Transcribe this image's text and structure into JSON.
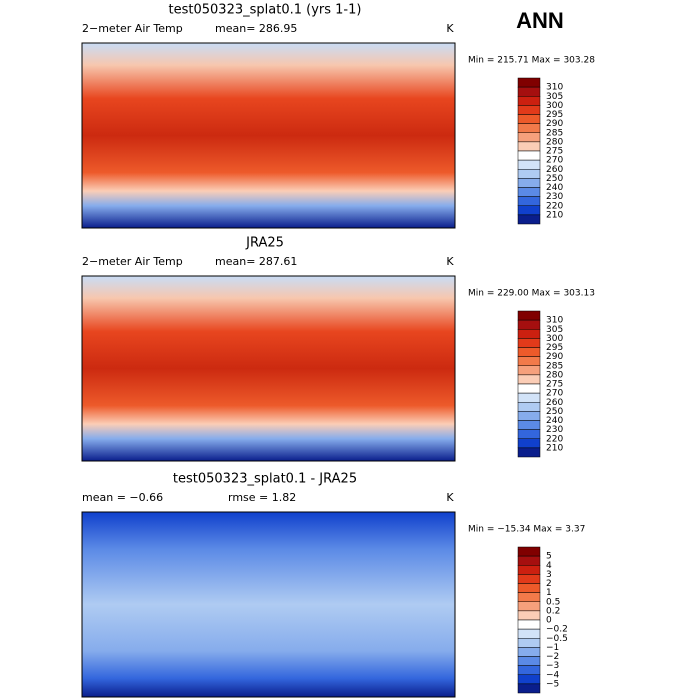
{
  "title": "ANN",
  "panels": [
    {
      "title": "test050323_splat0.1 (yrs 1-1)",
      "left": "2−meter Air Temp",
      "middle": "mean= 286.95",
      "units": "K",
      "range": "Min = 215.71 Max = 303.28",
      "colorbar": {
        "labels": [
          "310",
          "305",
          "300",
          "295",
          "290",
          "285",
          "280",
          "275",
          "270",
          "260",
          "250",
          "240",
          "230",
          "220",
          "210"
        ],
        "colors": [
          "#800000",
          "#a50f0f",
          "#cc2010",
          "#e23a1a",
          "#ed5a2a",
          "#f27a4a",
          "#f6a07c",
          "#fbcdb6",
          "#ffffff",
          "#d2e3f8",
          "#afcbf2",
          "#86acec",
          "#5b8ae6",
          "#3366dd",
          "#1040cc",
          "#0a1e8c"
        ]
      }
    },
    {
      "title": "JRA25",
      "left": "2−meter Air Temp",
      "middle": "mean= 287.61",
      "units": "K",
      "range": "Min = 229.00 Max = 303.13",
      "colorbar": {
        "labels": [
          "310",
          "305",
          "300",
          "295",
          "290",
          "285",
          "280",
          "275",
          "270",
          "260",
          "250",
          "240",
          "230",
          "220",
          "210"
        ],
        "colors": [
          "#800000",
          "#a50f0f",
          "#cc2010",
          "#e23a1a",
          "#ed5a2a",
          "#f27a4a",
          "#f6a07c",
          "#fbcdb6",
          "#ffffff",
          "#d2e3f8",
          "#afcbf2",
          "#86acec",
          "#5b8ae6",
          "#3366dd",
          "#1040cc",
          "#0a1e8c"
        ]
      }
    },
    {
      "title": "test050323_splat0.1 - JRA25",
      "left": "mean =  −0.66",
      "middle": "rmse =   1.82",
      "units": "K",
      "range": "Min = −15.34 Max =   3.37",
      "colorbar": {
        "labels": [
          "5",
          "4",
          "3",
          "2",
          "1",
          "0.5",
          "0.2",
          "0",
          "−0.2",
          "−0.5",
          "−1",
          "−2",
          "−3",
          "−4",
          "−5"
        ],
        "colors": [
          "#800000",
          "#a50f0f",
          "#cc2010",
          "#e23a1a",
          "#ed5a2a",
          "#f27a4a",
          "#f6a07c",
          "#fbcdb6",
          "#ffffff",
          "#d2e3f8",
          "#afcbf2",
          "#86acec",
          "#5b8ae6",
          "#3366dd",
          "#1040cc",
          "#0a1e8c"
        ]
      }
    }
  ]
}
